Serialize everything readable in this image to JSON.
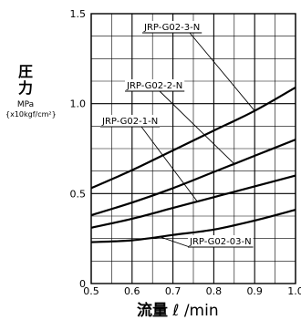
{
  "chart_data": {
    "type": "line",
    "ylabel_main_1": "圧",
    "ylabel_main_2": "力",
    "ylabel_unit_1": "MPa",
    "ylabel_unit_2": "{x10kgf/cm²}",
    "xlabel_main": "流量",
    "xlabel_unit": "ℓ /min",
    "xlim": [
      0.5,
      1.0
    ],
    "ylim": [
      0,
      1.5
    ],
    "x_ticks": [
      "0.5",
      "0.6",
      "0.7",
      "0.8",
      "0.9",
      "1.0"
    ],
    "y_ticks": [
      "0",
      "0.5",
      "1.0",
      "1.5"
    ],
    "grid": true,
    "series": [
      {
        "name": "JRP-G02-3-N",
        "x": [
          0.5,
          0.6,
          0.7,
          0.8,
          0.9,
          1.0
        ],
        "y": [
          0.53,
          0.63,
          0.74,
          0.85,
          0.96,
          1.09
        ]
      },
      {
        "name": "JRP-G02-2-N",
        "x": [
          0.5,
          0.6,
          0.7,
          0.8,
          0.9,
          1.0
        ],
        "y": [
          0.38,
          0.45,
          0.53,
          0.62,
          0.71,
          0.8
        ]
      },
      {
        "name": "JRP-G02-1-N",
        "x": [
          0.5,
          0.6,
          0.7,
          0.8,
          0.9,
          1.0
        ],
        "y": [
          0.31,
          0.36,
          0.42,
          0.48,
          0.54,
          0.6
        ]
      },
      {
        "name": "JRP-G02-03-N",
        "x": [
          0.5,
          0.6,
          0.7,
          0.8,
          0.9,
          1.0
        ],
        "y": [
          0.23,
          0.24,
          0.27,
          0.3,
          0.35,
          0.41
        ]
      }
    ]
  }
}
